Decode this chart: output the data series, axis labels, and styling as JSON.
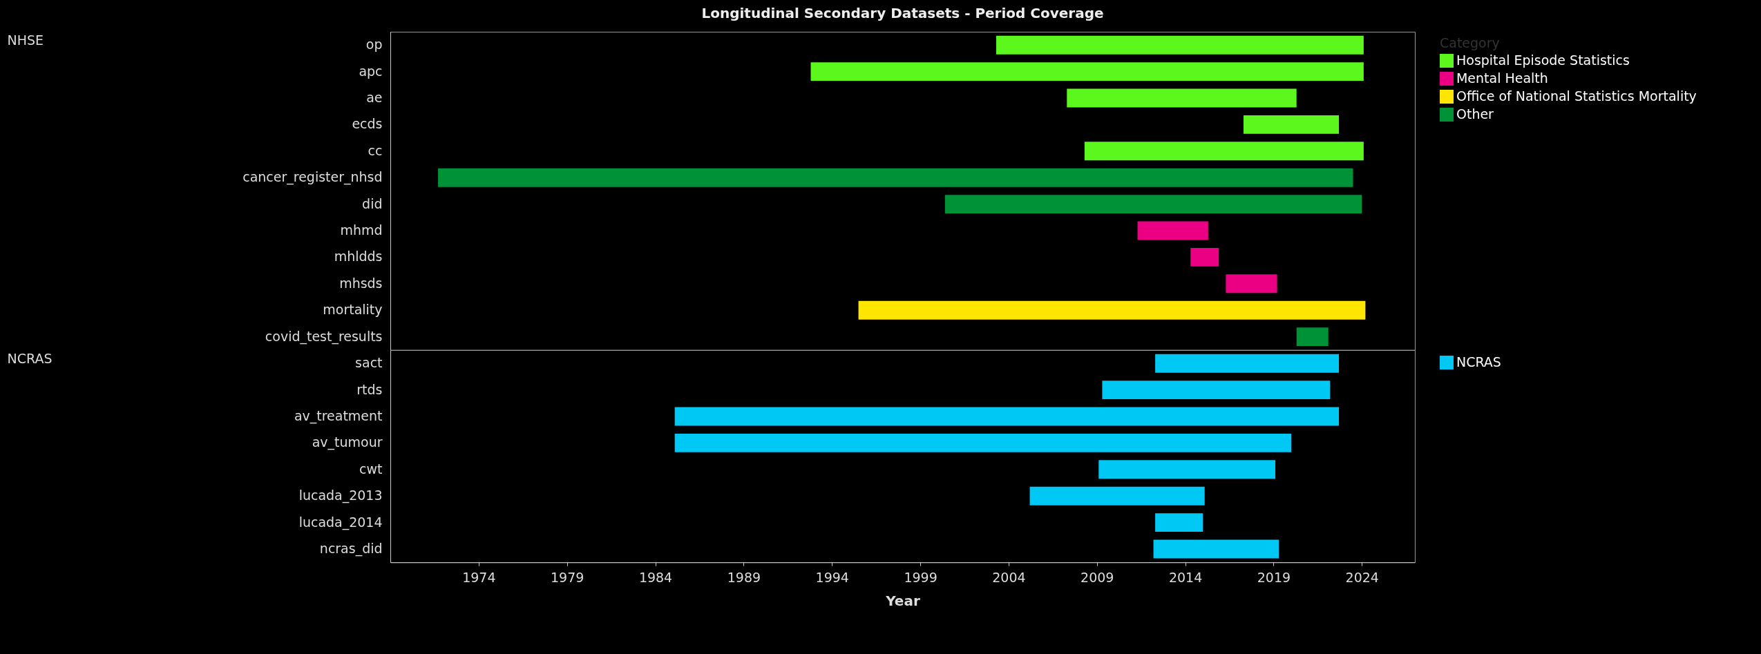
{
  "chart_data": [
    {
      "type": "bar",
      "orientation": "horizontal",
      "title": "Longitudinal Secondary Datasets - Period Coverage",
      "ylabel": "NHSE",
      "legend_title": "Category",
      "legend": "top right",
      "tick_labels": "y",
      "grid": false,
      "categories": [
        "op",
        "apc",
        "ae",
        "ecds",
        "cc",
        "cancer_register_nhsd",
        "did",
        "mhmd",
        "mhldds",
        "mhsds",
        "mortality",
        "covid_test_results"
      ],
      "xlim": [
        1969,
        2027
      ],
      "xticks": [
        1974,
        1979,
        1984,
        1989,
        1994,
        1999,
        2004,
        2009,
        2014,
        2019,
        2024
      ],
      "series": [
        {
          "name": "Hospital Episode Statistics",
          "color": "#5cf71c",
          "base": [
            2003.3,
            1992.8,
            2007.3,
            2017.3,
            2008.3,
            null,
            null,
            null,
            null,
            null,
            null,
            null
          ],
          "values": [
            20.8,
            31.3,
            13.0,
            5.4,
            15.8,
            null,
            null,
            null,
            null,
            null,
            null,
            null
          ]
        },
        {
          "name": "Mental Health",
          "color": "#ec0083",
          "base": [
            null,
            null,
            null,
            null,
            null,
            null,
            null,
            2011.3,
            2014.3,
            2016.3,
            null,
            null
          ],
          "values": [
            null,
            null,
            null,
            null,
            null,
            null,
            null,
            4.0,
            1.6,
            2.9,
            null,
            null
          ]
        },
        {
          "name": "Office of National Statistics Mortality",
          "color": "#ffe600",
          "base": [
            null,
            null,
            null,
            null,
            null,
            null,
            null,
            null,
            null,
            null,
            1995.5,
            null
          ],
          "values": [
            null,
            null,
            null,
            null,
            null,
            null,
            null,
            null,
            null,
            null,
            28.7,
            null
          ]
        },
        {
          "name": "Other",
          "color": "#009236",
          "base": [
            null,
            null,
            null,
            null,
            null,
            1971.7,
            2000.4,
            null,
            null,
            null,
            null,
            2020.3
          ],
          "values": [
            null,
            null,
            null,
            null,
            null,
            51.8,
            23.6,
            null,
            null,
            null,
            null,
            1.8
          ]
        }
      ]
    },
    {
      "type": "bar",
      "orientation": "horizontal",
      "ylabel": "NCRAS",
      "xlabel": "Year",
      "grid": false,
      "legend": "top right",
      "categories": [
        "sact",
        "rtds",
        "av_treatment",
        "av_tumour",
        "cwt",
        "lucada_2013",
        "lucada_2014",
        "ncras_did"
      ],
      "xlim": [
        1969,
        2027
      ],
      "xticks": [
        1974,
        1979,
        1984,
        1989,
        1994,
        1999,
        2004,
        2009,
        2014,
        2019,
        2024
      ],
      "series": [
        {
          "name": "NCRAS",
          "color": "#00c8f5",
          "base": [
            2012.3,
            2009.3,
            1985.1,
            1985.1,
            2009.1,
            2005.2,
            2012.3,
            2012.2
          ],
          "values": [
            10.4,
            12.9,
            37.6,
            34.9,
            10.0,
            9.9,
            2.7,
            7.1
          ]
        }
      ]
    }
  ]
}
